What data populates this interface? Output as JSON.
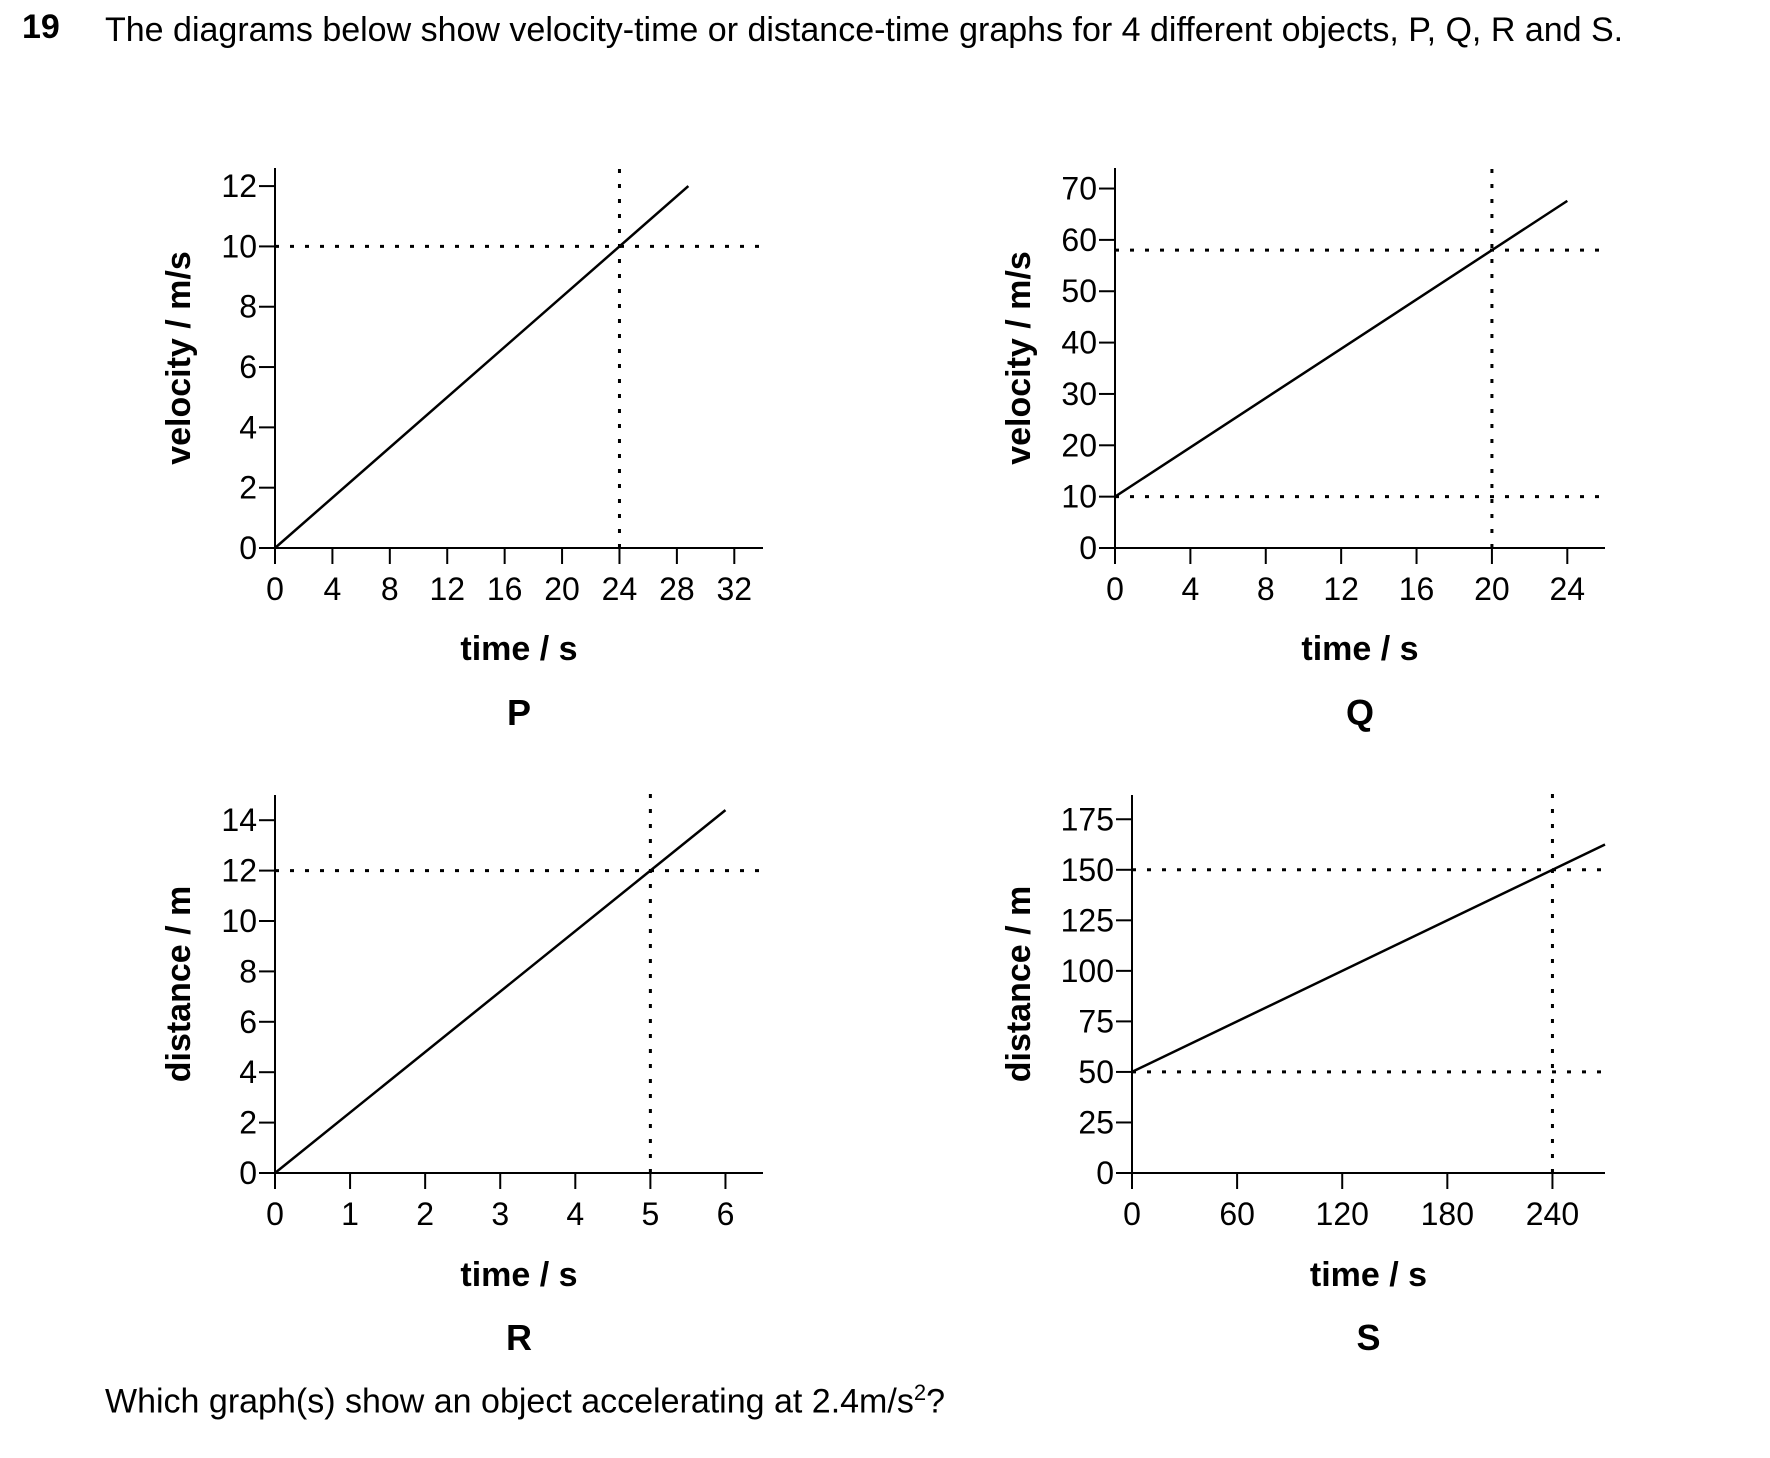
{
  "question": {
    "number": "19",
    "text": "The diagrams below show velocity-time or distance-time graphs for 4 different objects, P, Q, R and S.",
    "footer_text": "Which graph(s) show an object accelerating at 2.4m/s",
    "footer_sup": "2",
    "footer_end": "?"
  },
  "chart_data": [
    {
      "id": "P",
      "type": "line",
      "label": "P",
      "xlabel": "time / s",
      "ylabel": "velocity / m/s",
      "xticks": [
        0,
        4,
        8,
        12,
        16,
        20,
        24,
        28,
        32
      ],
      "yticks": [
        0,
        2,
        4,
        6,
        8,
        10,
        12
      ],
      "xlim": [
        0,
        34
      ],
      "ylim": [
        0,
        12.6
      ],
      "line": [
        [
          0,
          0
        ],
        [
          28.8,
          12
        ]
      ],
      "guides": {
        "x": [
          24
        ],
        "y": [
          10
        ]
      }
    },
    {
      "id": "Q",
      "type": "line",
      "label": "Q",
      "xlabel": "time / s",
      "ylabel": "velocity / m/s",
      "xticks": [
        0,
        4,
        8,
        12,
        16,
        20,
        24
      ],
      "yticks": [
        0,
        10,
        20,
        30,
        40,
        50,
        60,
        70
      ],
      "xlim": [
        0,
        26
      ],
      "ylim": [
        0,
        74
      ],
      "line": [
        [
          0,
          10
        ],
        [
          24,
          67.6
        ]
      ],
      "guides": {
        "x": [
          20
        ],
        "y": [
          10,
          58
        ]
      }
    },
    {
      "id": "R",
      "type": "line",
      "label": "R",
      "xlabel": "time / s",
      "ylabel": "distance / m",
      "xticks": [
        0,
        1,
        2,
        3,
        4,
        5,
        6
      ],
      "yticks": [
        0,
        2,
        4,
        6,
        8,
        10,
        12,
        14
      ],
      "xlim": [
        0,
        6.5
      ],
      "ylim": [
        0,
        15
      ],
      "line": [
        [
          0,
          0
        ],
        [
          6,
          14.4
        ]
      ],
      "guides": {
        "x": [
          5
        ],
        "y": [
          12
        ]
      }
    },
    {
      "id": "S",
      "type": "line",
      "label": "S",
      "xlabel": "time / s",
      "ylabel": "distance / m",
      "xticks": [
        0,
        60,
        120,
        180,
        240
      ],
      "yticks": [
        0,
        25,
        50,
        75,
        100,
        125,
        150,
        175
      ],
      "xlim": [
        0,
        270
      ],
      "ylim": [
        0,
        187
      ],
      "line": [
        [
          0,
          50
        ],
        [
          270,
          162.5
        ]
      ],
      "guides": {
        "x": [
          240
        ],
        "y": [
          50,
          150
        ]
      }
    }
  ]
}
